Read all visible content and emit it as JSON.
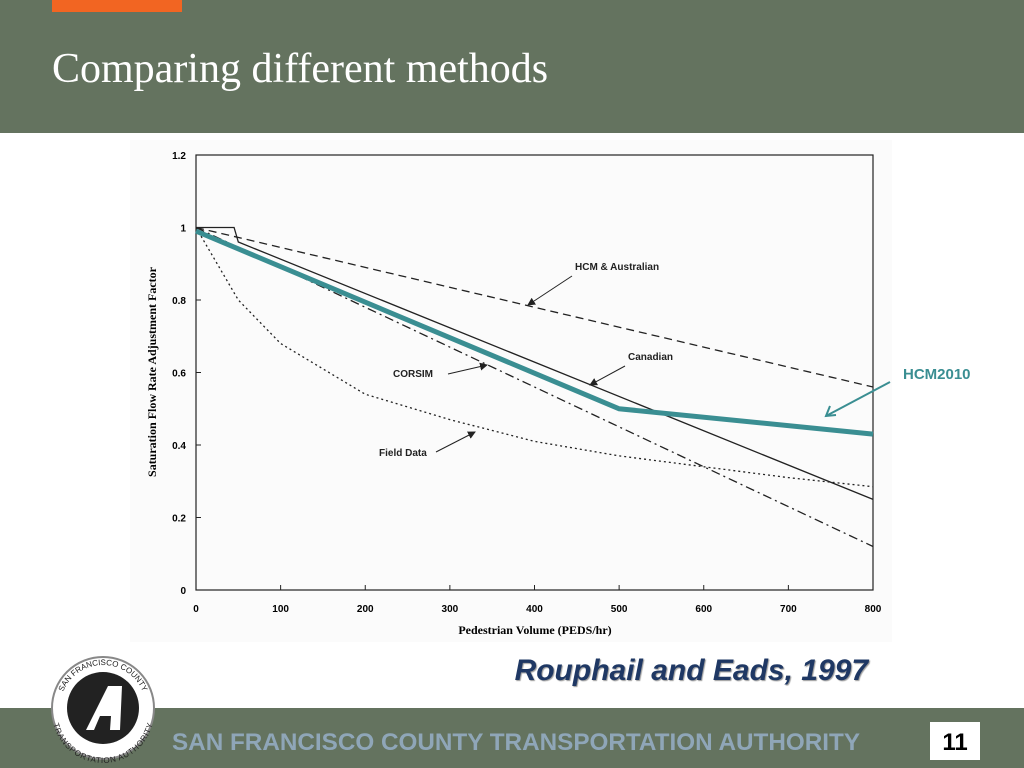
{
  "slide": {
    "title": "Comparing different methods",
    "citation": "Rouphail and Eads, 1997",
    "footer": "SAN FRANCISCO COUNTY TRANSPORTATION AUTHORITY",
    "page_number": "11",
    "logo_top": "SAN FRANCISCO COUNTY",
    "logo_bottom": "TRANSPORTATION AUTHORITY"
  },
  "chart_data": {
    "type": "line",
    "x_label": "Pedestrian Volume (PEDS/hr)",
    "y_label": "Saturation Flow Rate Adjustment Factor",
    "xlim": [
      0,
      800
    ],
    "xticks": [
      0,
      100,
      200,
      300,
      400,
      500,
      600,
      700,
      800
    ],
    "ylim": [
      0,
      1.2
    ],
    "yticks": [
      0,
      0.2,
      0.4,
      0.6,
      0.8,
      1,
      1.2
    ],
    "series": [
      {
        "name": "HCM & Australian",
        "color": "#222222",
        "dash": "dashed",
        "x": [
          0,
          800
        ],
        "values": [
          1,
          0.56
        ]
      },
      {
        "name": "Canadian",
        "color": "#222222",
        "dash": "solid",
        "x": [
          0,
          45,
          50,
          800
        ],
        "values": [
          1,
          1,
          0.96,
          0.25
        ]
      },
      {
        "name": "CORSIM",
        "color": "#222222",
        "dash": "dashdot",
        "x": [
          0,
          800
        ],
        "values": [
          1,
          0.12
        ]
      },
      {
        "name": "Field Data",
        "color": "#222222",
        "dash": "dotted",
        "x": [
          0,
          25,
          50,
          100,
          200,
          300,
          400,
          500,
          600,
          700,
          800
        ],
        "values": [
          1,
          0.9,
          0.8,
          0.68,
          0.54,
          0.47,
          0.41,
          0.37,
          0.34,
          0.31,
          0.285
        ]
      },
      {
        "name": "HCM2010",
        "color": "#3a8e92",
        "dash": "solid",
        "x": [
          0,
          500,
          800
        ],
        "values": [
          0.99,
          0.5,
          0.43
        ]
      }
    ]
  }
}
